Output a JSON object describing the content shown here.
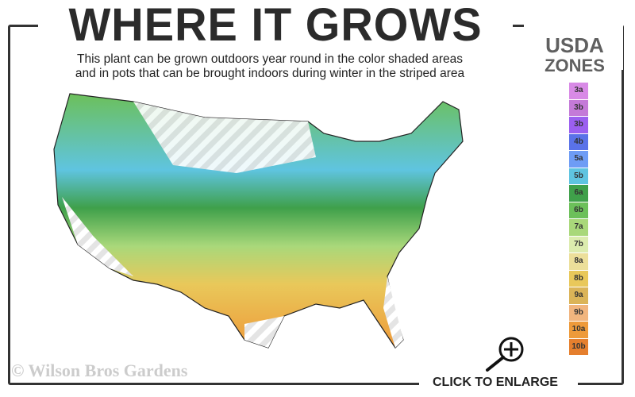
{
  "title": "WHERE IT GROWS",
  "subtitle_line1": "This plant can be grown outdoors year round in the color shaded areas",
  "subtitle_line2": "and in pots that can be brought indoors during winter in the striped area",
  "legend": {
    "title_line1": "USDA",
    "title_line2": "ZONES",
    "zones": [
      {
        "label": "3a",
        "color": "#d88ae6"
      },
      {
        "label": "3b",
        "color": "#c47ad8"
      },
      {
        "label": "3b",
        "color": "#9b5ff0"
      },
      {
        "label": "4b",
        "color": "#5a72e8"
      },
      {
        "label": "5a",
        "color": "#6e9cf5"
      },
      {
        "label": "5b",
        "color": "#5fc4e0"
      },
      {
        "label": "6a",
        "color": "#3fa04a"
      },
      {
        "label": "6b",
        "color": "#6cc05a"
      },
      {
        "label": "7a",
        "color": "#a9d87a"
      },
      {
        "label": "7b",
        "color": "#dcecae"
      },
      {
        "label": "8a",
        "color": "#ecdf9a"
      },
      {
        "label": "8b",
        "color": "#e9c85a"
      },
      {
        "label": "9a",
        "color": "#dbb458"
      },
      {
        "label": "9b",
        "color": "#f1b57e"
      },
      {
        "label": "10a",
        "color": "#ee9a3a"
      },
      {
        "label": "10b",
        "color": "#e57f2e"
      }
    ]
  },
  "copyright": "© Wilson Bros Gardens",
  "enlarge_label": "CLICK TO ENLARGE",
  "icons": {
    "enlarge": "magnifier-plus-icon"
  }
}
